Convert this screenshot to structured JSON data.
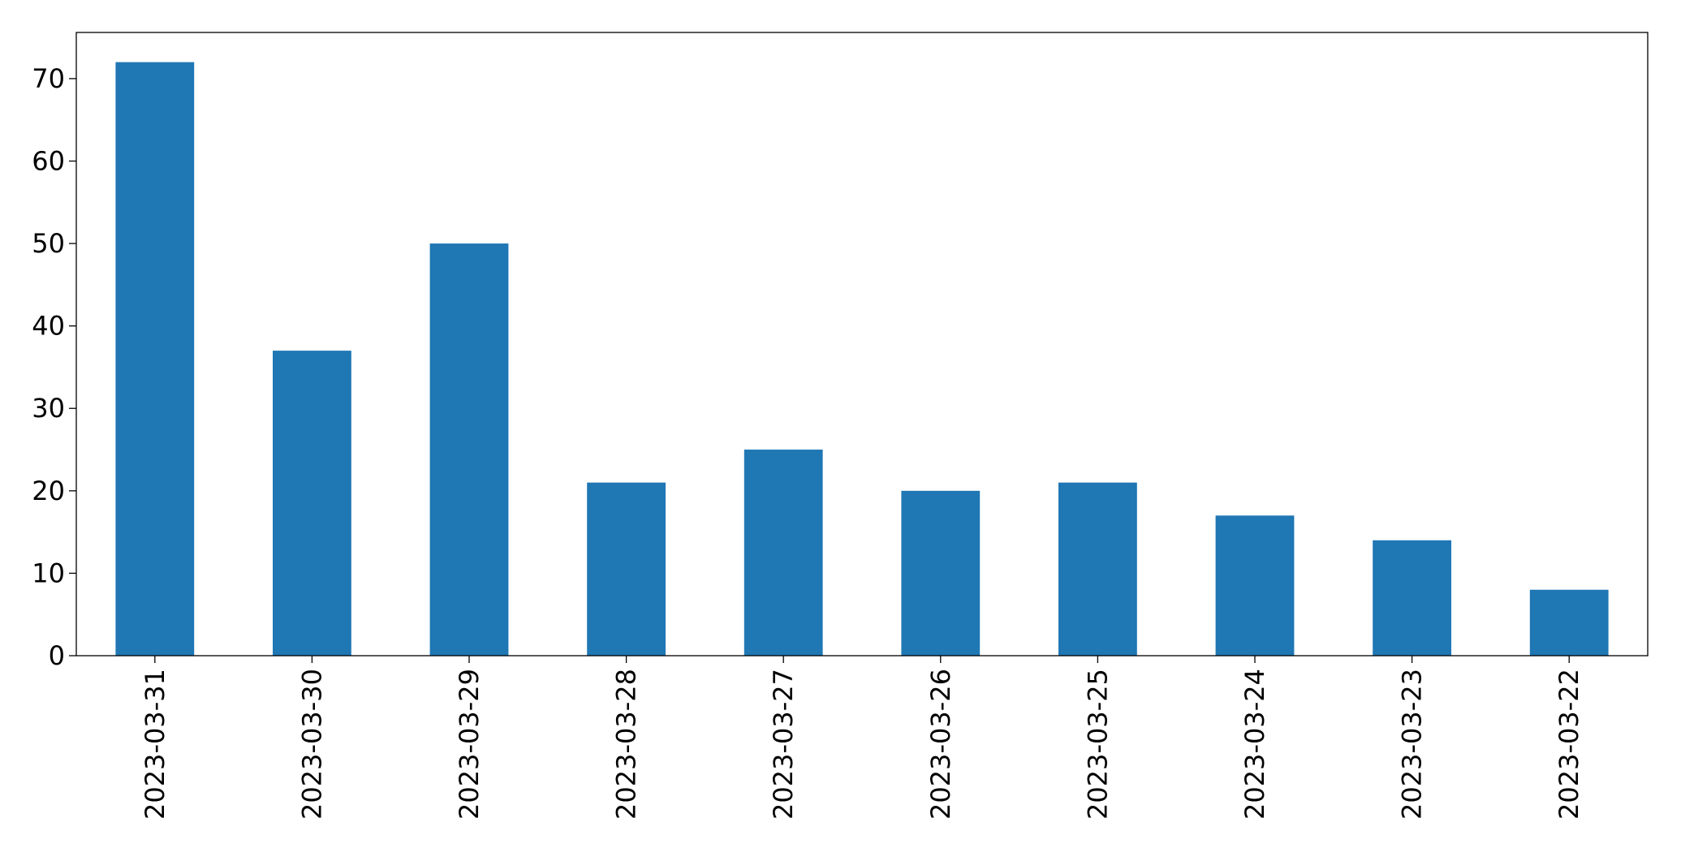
{
  "chart_data": {
    "type": "bar",
    "categories": [
      "2023-03-31",
      "2023-03-30",
      "2023-03-29",
      "2023-03-28",
      "2023-03-27",
      "2023-03-26",
      "2023-03-25",
      "2023-03-24",
      "2023-03-23",
      "2023-03-22"
    ],
    "values": [
      72,
      37,
      50,
      21,
      25,
      20,
      21,
      17,
      14,
      8
    ],
    "color": "#1f77b4",
    "ylim": [
      0,
      75.6
    ],
    "yticks": [
      0,
      10,
      20,
      30,
      40,
      50,
      60,
      70
    ],
    "grid": false
  }
}
